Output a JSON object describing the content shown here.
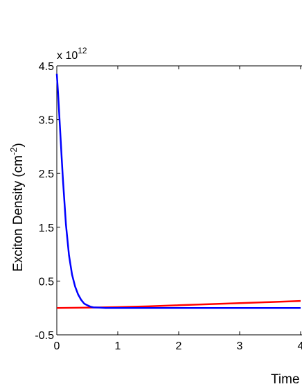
{
  "chart_data": {
    "type": "line",
    "title": "",
    "xlabel": "Time",
    "ylabel_main": "Exciton Density (cm",
    "ylabel_sup": "-2",
    "ylabel_close": ")",
    "y_multiplier_base": "x 10",
    "y_multiplier_exp": "12",
    "xlim": [
      0,
      4
    ],
    "ylim": [
      -0.5,
      4.5
    ],
    "x_ticks": [
      0,
      1,
      2,
      3,
      4
    ],
    "x_tick_labels": [
      "0",
      "1",
      "2",
      "3",
      "4"
    ],
    "y_ticks": [
      -0.5,
      0.5,
      1.5,
      2.5,
      3.5,
      4.5
    ],
    "y_tick_labels": [
      "-0.5",
      "0.5",
      "1.5",
      "2.5",
      "3.5",
      "4.5"
    ],
    "grid": false,
    "series": [
      {
        "color": "#ff0000",
        "x": [
          0,
          0.5,
          1,
          1.5,
          2,
          2.5,
          3,
          3.5,
          4
        ],
        "y": [
          0.0,
          0.005,
          0.015,
          0.03,
          0.05,
          0.07,
          0.09,
          0.11,
          0.13
        ]
      },
      {
        "color": "#0000ff",
        "x": [
          0.0,
          0.02,
          0.05,
          0.08,
          0.1,
          0.15,
          0.2,
          0.25,
          0.3,
          0.35,
          0.4,
          0.45,
          0.5,
          0.55,
          0.6,
          0.7,
          0.8,
          1.0,
          1.5,
          2.0,
          3.0,
          4.0
        ],
        "y": [
          4.35,
          4.0,
          3.4,
          2.8,
          2.4,
          1.55,
          0.98,
          0.62,
          0.4,
          0.25,
          0.15,
          0.08,
          0.05,
          0.025,
          0.01,
          0.005,
          0.0,
          0.0,
          0.0,
          0.0,
          0.0,
          0.0
        ]
      }
    ]
  }
}
